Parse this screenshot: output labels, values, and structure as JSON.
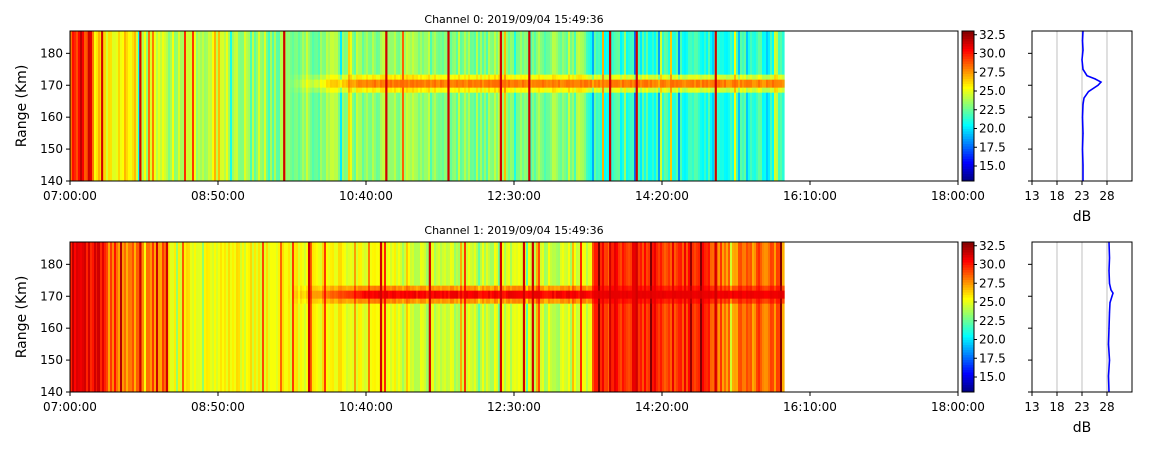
{
  "chart_data": [
    {
      "type": "heatmap",
      "title": "Channel 0: 2019/09/04 15:49:36",
      "xlabel": "",
      "ylabel": "Range (Km)",
      "x_ticks": [
        "07:00:00",
        "08:50:00",
        "10:40:00",
        "12:30:00",
        "14:20:00",
        "16:10:00",
        "18:00:00"
      ],
      "x_range": [
        "07:00:00",
        "18:00:00"
      ],
      "data_end_time": "15:50:00",
      "y_ticks": [
        140,
        150,
        160,
        170,
        180
      ],
      "ylim": [
        140,
        187
      ],
      "colorbar": {
        "colormap": "jet",
        "ticks": [
          15.0,
          17.5,
          20.0,
          22.5,
          25.0,
          27.5,
          30.0,
          32.5
        ],
        "range": [
          13,
          33
        ]
      },
      "echo_band": {
        "range_km": 170.5,
        "appears_at": "09:40:00",
        "peak_db": 28.5
      },
      "profile": {
        "type": "line",
        "xlabel": "dB",
        "x_ticks": [
          13,
          18,
          23,
          28
        ],
        "xlim": [
          13,
          33
        ],
        "grid": "vertical",
        "color": "#0000ff",
        "points": [
          [
            23.2,
            140
          ],
          [
            23.2,
            145
          ],
          [
            23.1,
            150
          ],
          [
            23.2,
            155
          ],
          [
            23.1,
            160
          ],
          [
            23.2,
            164
          ],
          [
            23.4,
            166
          ],
          [
            24.3,
            168
          ],
          [
            26.2,
            170
          ],
          [
            26.8,
            171
          ],
          [
            25.6,
            172
          ],
          [
            24.0,
            173
          ],
          [
            23.2,
            175
          ],
          [
            23.0,
            178
          ],
          [
            23.2,
            181
          ],
          [
            23.1,
            184
          ],
          [
            23.2,
            187
          ]
        ]
      }
    },
    {
      "type": "heatmap",
      "title": "Channel 1: 2019/09/04 15:49:36",
      "xlabel": "",
      "ylabel": "Range (Km)",
      "x_ticks": [
        "07:00:00",
        "08:50:00",
        "10:40:00",
        "12:30:00",
        "14:20:00",
        "16:10:00",
        "18:00:00"
      ],
      "x_range": [
        "07:00:00",
        "18:00:00"
      ],
      "data_end_time": "15:50:00",
      "y_ticks": [
        140,
        150,
        160,
        170,
        180
      ],
      "ylim": [
        140,
        187
      ],
      "colorbar": {
        "colormap": "jet",
        "ticks": [
          15.0,
          17.5,
          20.0,
          22.5,
          25.0,
          27.5,
          30.0,
          32.5
        ],
        "range": [
          13,
          33
        ]
      },
      "echo_band": {
        "range_km": 170.5,
        "appears_at": "09:40:00",
        "peak_db": 31
      },
      "profile": {
        "type": "line",
        "xlabel": "dB",
        "x_ticks": [
          13,
          18,
          23,
          28
        ],
        "xlim": [
          13,
          33
        ],
        "grid": "vertical",
        "color": "#0000ff",
        "points": [
          [
            28.4,
            140
          ],
          [
            28.3,
            145
          ],
          [
            28.5,
            150
          ],
          [
            28.3,
            155
          ],
          [
            28.4,
            160
          ],
          [
            28.5,
            165
          ],
          [
            28.6,
            168
          ],
          [
            29.0,
            170
          ],
          [
            29.2,
            171
          ],
          [
            28.8,
            172
          ],
          [
            28.5,
            174
          ],
          [
            28.4,
            178
          ],
          [
            28.5,
            182
          ],
          [
            28.4,
            187
          ]
        ]
      }
    }
  ]
}
